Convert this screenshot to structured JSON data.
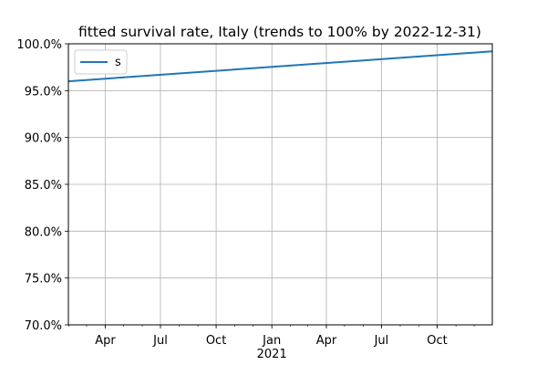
{
  "chart_data": {
    "type": "line",
    "title": "fitted survival rate, Italy (trends to 100% by 2022-12-31)",
    "xlabel": "",
    "ylabel": "",
    "x_axis": {
      "type": "date",
      "range": [
        "2020-01-31",
        "2021-12-31"
      ],
      "major_ticks": [
        {
          "date": "2020-04-01",
          "label": "Apr"
        },
        {
          "date": "2020-07-01",
          "label": "Jul"
        },
        {
          "date": "2020-10-01",
          "label": "Oct"
        },
        {
          "date": "2021-01-01",
          "label": "Jan"
        },
        {
          "date": "2021-04-01",
          "label": "Apr"
        },
        {
          "date": "2021-07-01",
          "label": "Jul"
        },
        {
          "date": "2021-10-01",
          "label": "Oct"
        }
      ],
      "year_label": {
        "date": "2021-01-01",
        "label": "2021"
      }
    },
    "y_axis": {
      "range": [
        70,
        100
      ],
      "ticks": [
        70,
        75,
        80,
        85,
        90,
        95,
        100
      ],
      "tick_format": "percent_one_decimal"
    },
    "grid": true,
    "legend": {
      "placement": "top-left"
    },
    "series": [
      {
        "name": "s",
        "color": "#1f77b4",
        "points": [
          {
            "x": "2020-01-31",
            "y": 96.0
          },
          {
            "x": "2021-12-31",
            "y": 99.2
          }
        ]
      }
    ]
  }
}
